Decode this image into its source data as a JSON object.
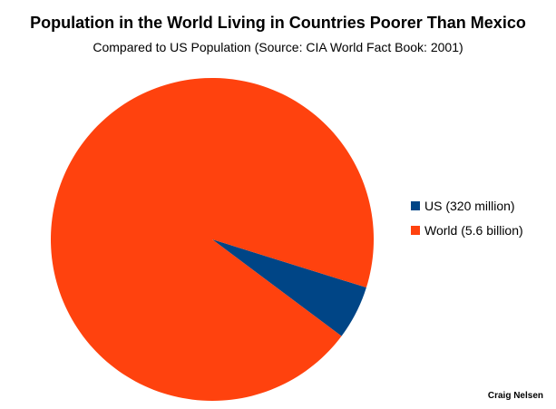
{
  "chart_data": {
    "type": "pie",
    "title": "Population in the World Living in Countries Poorer Than Mexico",
    "subtitle": "Compared to US Population (Source: CIA World Fact Book: 2001)",
    "slices": [
      {
        "label": "US (320 million)",
        "value": 320,
        "color": "#004586"
      },
      {
        "label": "World (5.6 billion)",
        "value": 5600,
        "color": "#ff420e"
      }
    ],
    "legend_position": "right",
    "credit": "Craig Nelsen"
  }
}
